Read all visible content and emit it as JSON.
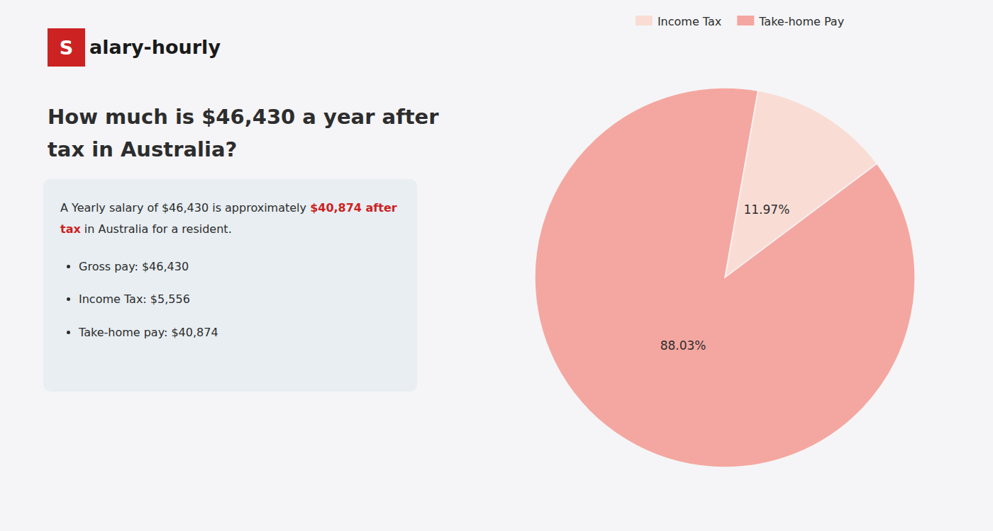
{
  "chart_data": {
    "type": "pie",
    "title": "How much is $46,430 a year after tax in Australia?",
    "categories": [
      "Income Tax",
      "Take-home Pay"
    ],
    "values": [
      11.97,
      88.03
    ],
    "value_labels": [
      "11.97%",
      "88.03%"
    ],
    "data_labels": true,
    "colors": [
      "#f9ddd5",
      "#f4a7a0"
    ],
    "legend": "top",
    "annotations": [
      {
        "text": "S"
      },
      {
        "text": "alary-hourly"
      },
      {
        "text": "A Yearly salary of $46,430 is approximately "
      },
      {
        "text": "$40,874 after tax",
        "color": "#cc2222"
      },
      {
        "text": " in"
      },
      {
        "text": " Australia for a resident."
      },
      {
        "text": "Gross pay: $46,430"
      },
      {
        "text": "Income Tax: $5,556"
      },
      {
        "text": "Take-home pay: $40,874"
      }
    ]
  }
}
